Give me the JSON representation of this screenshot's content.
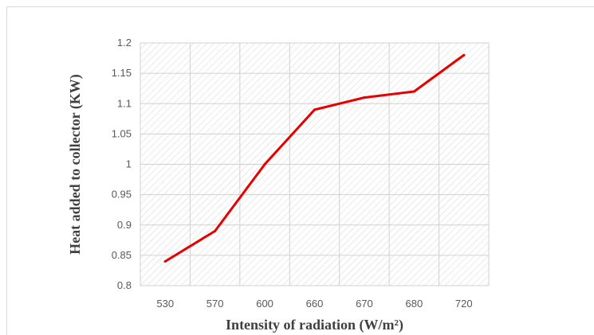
{
  "chart_data": {
    "type": "line",
    "categories": [
      "530",
      "570",
      "600",
      "660",
      "670",
      "680",
      "720"
    ],
    "series": [
      {
        "values": [
          0.84,
          0.89,
          1.0,
          1.09,
          1.11,
          1.12,
          1.18
        ],
        "color": "#e60000"
      }
    ],
    "xlabel": "Intensity of radiation (W/m²)",
    "ylabel": "Heat added to collector (KW)",
    "ylim": [
      0.8,
      1.2
    ],
    "yticks": [
      "0.8",
      "0.85",
      "0.9",
      "0.95",
      "1",
      "1.05",
      "1.1",
      "1.15",
      "1.2"
    ],
    "grid": true,
    "plot_background": "hatched",
    "legend": "none"
  }
}
